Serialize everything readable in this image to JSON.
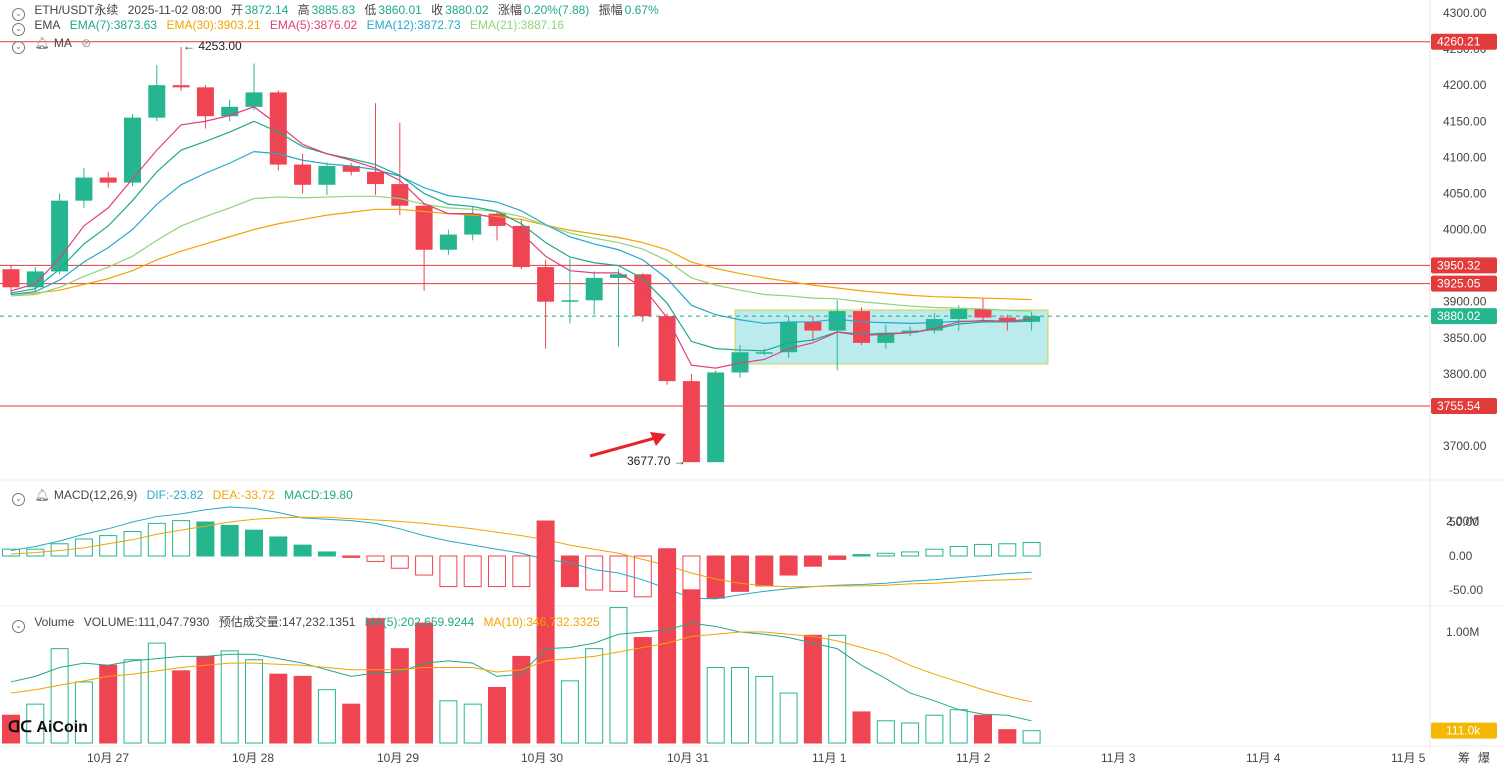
{
  "header": {
    "symbol": "ETH/USDT永续",
    "datetime": "2025-11-02 08:00",
    "open_label": "开",
    "open": "3872.14",
    "high_label": "高",
    "high": "3885.83",
    "low_label": "低",
    "low": "3860.01",
    "close_label": "收",
    "close": "3880.02",
    "change_label": "涨幅",
    "change": "0.20%(7.88)",
    "amp_label": "振幅",
    "amp": "0.67%"
  },
  "ema_legend": {
    "label": "EMA",
    "items": [
      {
        "text": "EMA(7):3873.63",
        "color": "#1fa98b"
      },
      {
        "text": "EMA(30):3903.21",
        "color": "#f0a500"
      },
      {
        "text": "EMA(5):3876.02",
        "color": "#e0407a"
      },
      {
        "text": "EMA(12):3872.73",
        "color": "#27a9c9"
      },
      {
        "text": "EMA(21):3887.16",
        "color": "#8fd37a"
      }
    ],
    "ma_label": "MA"
  },
  "macd_legend": {
    "label": "MACD(12,26,9)",
    "dif": "DIF:-23.82",
    "dea": "DEA:-33.72",
    "macd": "MACD:19.80"
  },
  "vol_legend": {
    "label": "Volume",
    "volume": "VOLUME:111,047.7930",
    "est": "预估成交量:147,232.1351",
    "ma5": "MA(5):202,659.9244",
    "ma10": "MA(10):346,732.3325"
  },
  "logo": "AiCoin",
  "colors": {
    "up": "#26b68f",
    "down": "#ef4452",
    "line": "#e23b3b",
    "box": "#9fe3e6"
  },
  "chart_data": {
    "type": "candlestick",
    "x_labels": [
      "10月 27",
      "10月 28",
      "10月 29",
      "10月 30",
      "10月 31",
      "11月 1",
      "11月 2",
      "11月 3",
      "11月 4",
      "11月 5"
    ],
    "price_ticks": [
      "4300.00",
      "4250.00",
      "4200.00",
      "4150.00",
      "4100.00",
      "4050.00",
      "4000.00",
      "3950.00",
      "3900.00",
      "3850.00",
      "3800.00",
      "3750.00",
      "3700.00"
    ],
    "macd_ticks": [
      "50.00",
      "0.00",
      "-50.00"
    ],
    "vol_ticks": [
      "2.00M",
      "1.00M"
    ],
    "horizontal_levels": [
      "4260.21",
      "3950.32",
      "3925.05",
      "3755.54"
    ],
    "current_price": "3880.02",
    "current_volume": "111.0k",
    "annotations": {
      "high": "4253.00",
      "low": "3677.70"
    },
    "candles": [
      [
        3945,
        3920,
        3950,
        3910
      ],
      [
        3920,
        3942,
        3948,
        3915
      ],
      [
        3942,
        4040,
        4050,
        3938
      ],
      [
        4040,
        4072,
        4085,
        4030
      ],
      [
        4072,
        4065,
        4080,
        4058
      ],
      [
        4065,
        4155,
        4160,
        4060
      ],
      [
        4155,
        4200,
        4228,
        4150
      ],
      [
        4200,
        4197,
        4253,
        4192
      ],
      [
        4197,
        4157,
        4200,
        4140
      ],
      [
        4157,
        4170,
        4180,
        4150
      ],
      [
        4170,
        4190,
        4230,
        4165
      ],
      [
        4190,
        4090,
        4193,
        4082
      ],
      [
        4090,
        4062,
        4105,
        4050
      ],
      [
        4062,
        4088,
        4093,
        4048
      ],
      [
        4088,
        4080,
        4092,
        4075
      ],
      [
        4080,
        4063,
        4175,
        4048
      ],
      [
        4063,
        4033,
        4148,
        4020
      ],
      [
        4033,
        3972,
        4035,
        3915
      ],
      [
        3972,
        3993,
        4000,
        3965
      ],
      [
        3993,
        4022,
        4032,
        3985
      ],
      [
        4022,
        4005,
        4025,
        3985
      ],
      [
        4005,
        3948,
        4015,
        3945
      ],
      [
        3948,
        3900,
        3958,
        3835
      ],
      [
        3900,
        3902,
        3960,
        3870
      ],
      [
        3902,
        3933,
        3942,
        3882
      ],
      [
        3933,
        3938,
        3945,
        3838
      ],
      [
        3938,
        3880,
        3940,
        3872
      ],
      [
        3880,
        3790,
        3884,
        3785
      ],
      [
        3790,
        3677.7,
        3800,
        3677.7
      ],
      [
        3677.7,
        3802,
        3805,
        3680
      ],
      [
        3802,
        3830,
        3840,
        3795
      ],
      [
        3830,
        3830,
        3835,
        3826
      ],
      [
        3830,
        3872,
        3880,
        3822
      ],
      [
        3872,
        3860,
        3880,
        3845
      ],
      [
        3860,
        3887,
        3902,
        3805
      ],
      [
        3887,
        3843,
        3892,
        3840
      ],
      [
        3843,
        3857,
        3868,
        3835
      ],
      [
        3857,
        3860,
        3866,
        3852
      ],
      [
        3860,
        3876,
        3884,
        3856
      ],
      [
        3876,
        3890,
        3895,
        3860
      ],
      [
        3890,
        3878,
        3905,
        3872
      ],
      [
        3878,
        3872,
        3882,
        3860
      ],
      [
        3872.14,
        3880.02,
        3885.83,
        3860.01
      ]
    ],
    "ema5": [
      3915,
      3925,
      3960,
      4005,
      4030,
      4070,
      4110,
      4145,
      4150,
      4158,
      4170,
      4145,
      4118,
      4105,
      4096,
      4085,
      4068,
      4036,
      4022,
      4022,
      4016,
      3995,
      3963,
      3943,
      3940,
      3940,
      3920,
      3878,
      3812,
      3808,
      3815,
      3820,
      3835,
      3843,
      3858,
      3853,
      3855,
      3857,
      3863,
      3872,
      3874,
      3873,
      3876
    ],
    "ema7": [
      3912,
      3918,
      3945,
      3980,
      4005,
      4040,
      4080,
      4110,
      4122,
      4135,
      4150,
      4135,
      4115,
      4105,
      4098,
      4090,
      4075,
      4050,
      4035,
      4032,
      4025,
      4008,
      3982,
      3962,
      3954,
      3950,
      3932,
      3898,
      3845,
      3835,
      3833,
      3832,
      3843,
      3847,
      3858,
      3855,
      3856,
      3857,
      3862,
      3869,
      3872,
      3872,
      3873
    ],
    "ema12": [
      3910,
      3914,
      3930,
      3955,
      3975,
      4000,
      4035,
      4062,
      4078,
      4092,
      4108,
      4105,
      4096,
      4091,
      4088,
      4083,
      4074,
      4058,
      4047,
      4043,
      4038,
      4026,
      4007,
      3990,
      3980,
      3972,
      3958,
      3932,
      3895,
      3882,
      3875,
      3870,
      3872,
      3872,
      3876,
      3872,
      3871,
      3870,
      3871,
      3873,
      3873,
      3873,
      3873
    ],
    "ema21": [
      3908,
      3910,
      3920,
      3935,
      3948,
      3963,
      3985,
      4005,
      4018,
      4030,
      4043,
      4045,
      4044,
      4045,
      4046,
      4046,
      4043,
      4035,
      4030,
      4028,
      4025,
      4018,
      4006,
      3995,
      3988,
      3982,
      3973,
      3957,
      3933,
      3923,
      3916,
      3910,
      3908,
      3905,
      3904,
      3900,
      3897,
      3894,
      3892,
      3891,
      3890,
      3888,
      3887
    ],
    "ema30": [
      3910,
      3912,
      3916,
      3924,
      3932,
      3943,
      3958,
      3970,
      3980,
      3990,
      4000,
      4008,
      4014,
      4020,
      4024,
      4028,
      4028,
      4025,
      4022,
      4020,
      4018,
      4014,
      4006,
      3999,
      3994,
      3989,
      3982,
      3972,
      3955,
      3946,
      3939,
      3933,
      3928,
      3923,
      3919,
      3915,
      3912,
      3909,
      3907,
      3906,
      3905,
      3904,
      3903
    ],
    "macd_hist": [
      10,
      10,
      18,
      25,
      30,
      36,
      48,
      52,
      50,
      45,
      38,
      28,
      16,
      6,
      -2,
      -8,
      -18,
      -28,
      -45,
      -45,
      -45,
      -45,
      -48,
      -45,
      -50,
      -52,
      -60,
      -70,
      -75,
      -62,
      -52,
      -44,
      -28,
      -15,
      -5,
      2,
      4,
      6,
      10,
      14,
      17,
      18,
      19.8
    ],
    "macd_dif": [
      8,
      14,
      22,
      32,
      40,
      50,
      58,
      62,
      68,
      72,
      70,
      64,
      56,
      54,
      52,
      48,
      40,
      30,
      22,
      16,
      10,
      4,
      -5,
      -10,
      -20,
      -25,
      -35,
      -48,
      -62,
      -63,
      -57,
      -52,
      -48,
      -45,
      -43,
      -42,
      -40,
      -37,
      -35,
      -32,
      -29,
      -26,
      -23.82
    ],
    "macd_dea": [
      3,
      5,
      8,
      12,
      18,
      24,
      32,
      38,
      44,
      50,
      54,
      56,
      57,
      57,
      55,
      53,
      51,
      48,
      44,
      40,
      35,
      30,
      24,
      16,
      10,
      4,
      -5,
      -14,
      -25,
      -34,
      -40,
      -44,
      -45,
      -45,
      -44,
      -44,
      -43,
      -41,
      -40,
      -38,
      -36,
      -35,
      -33.72
    ],
    "volume": [
      0.25,
      0.35,
      0.85,
      0.55,
      0.7,
      0.75,
      0.9,
      0.65,
      0.78,
      0.83,
      0.75,
      0.62,
      0.6,
      0.48,
      0.35,
      1.12,
      0.85,
      1.08,
      0.38,
      0.35,
      0.5,
      0.78,
      2.0,
      0.56,
      0.85,
      1.22,
      0.95,
      1.75,
      1.38,
      0.68,
      0.68,
      0.6,
      0.45,
      0.97,
      0.97,
      0.28,
      0.2,
      0.18,
      0.25,
      0.3,
      0.25,
      0.12,
      0.111
    ],
    "vol_ma5": [
      0.55,
      0.6,
      0.68,
      0.72,
      0.7,
      0.74,
      0.76,
      0.78,
      0.78,
      0.8,
      0.8,
      0.76,
      0.72,
      0.66,
      0.6,
      0.63,
      0.64,
      0.72,
      0.74,
      0.72,
      0.6,
      0.62,
      0.85,
      0.86,
      0.9,
      0.98,
      1.0,
      1.02,
      1.08,
      1.05,
      1.0,
      0.98,
      0.95,
      0.9,
      0.85,
      0.7,
      0.58,
      0.45,
      0.38,
      0.3,
      0.26,
      0.25,
      0.2
    ],
    "vol_ma10": [
      0.45,
      0.48,
      0.52,
      0.56,
      0.6,
      0.62,
      0.65,
      0.68,
      0.7,
      0.72,
      0.72,
      0.71,
      0.7,
      0.68,
      0.66,
      0.66,
      0.66,
      0.68,
      0.68,
      0.68,
      0.64,
      0.66,
      0.74,
      0.76,
      0.78,
      0.82,
      0.86,
      0.9,
      0.96,
      0.98,
      1.0,
      1.0,
      0.98,
      0.96,
      0.92,
      0.86,
      0.8,
      0.7,
      0.62,
      0.55,
      0.48,
      0.42,
      0.37
    ]
  }
}
